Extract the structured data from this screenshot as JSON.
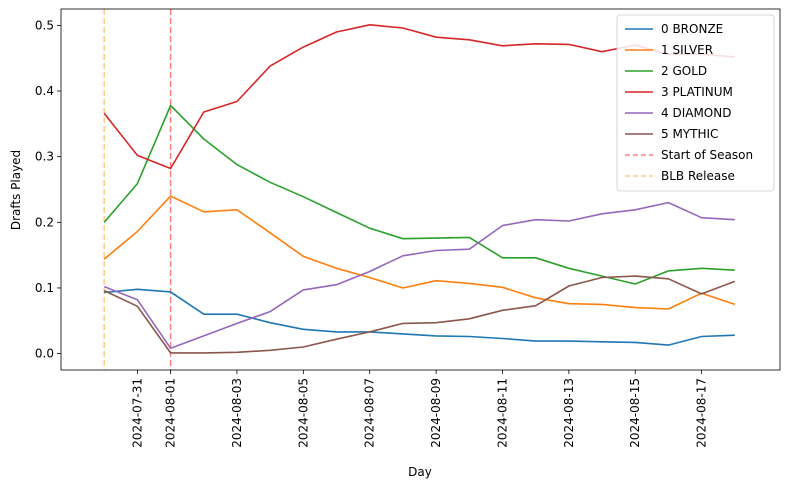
{
  "chart_data": {
    "type": "line",
    "xlabel": "Day",
    "ylabel": "Drafts Played",
    "xlim": [
      "2024-07-29",
      "2024-08-19"
    ],
    "ylim": [
      -0.025,
      0.525
    ],
    "x_tick_labels": [
      "2024-07-31",
      "2024-08-01",
      "2024-08-03",
      "2024-08-05",
      "2024-08-07",
      "2024-08-09",
      "2024-08-11",
      "2024-08-13",
      "2024-08-15",
      "2024-08-17"
    ],
    "y_tick_labels": [
      "0.0",
      "0.1",
      "0.2",
      "0.3",
      "0.4",
      "0.5"
    ],
    "y_ticks": [
      0.0,
      0.1,
      0.2,
      0.3,
      0.4,
      0.5
    ],
    "x": [
      "2024-07-30",
      "2024-07-31",
      "2024-08-01",
      "2024-08-02",
      "2024-08-03",
      "2024-08-04",
      "2024-08-05",
      "2024-08-06",
      "2024-08-07",
      "2024-08-08",
      "2024-08-09",
      "2024-08-10",
      "2024-08-11",
      "2024-08-12",
      "2024-08-13",
      "2024-08-14",
      "2024-08-15",
      "2024-08-16",
      "2024-08-17",
      "2024-08-18"
    ],
    "series": [
      {
        "name": "0 BRONZE",
        "color": "#1f77b4",
        "values": [
          0.093,
          0.098,
          0.094,
          0.06,
          0.06,
          0.047,
          0.037,
          0.033,
          0.033,
          0.03,
          0.027,
          0.026,
          0.023,
          0.019,
          0.019,
          0.018,
          0.017,
          0.013,
          0.026,
          0.028
        ]
      },
      {
        "name": "1 SILVER",
        "color": "#ff7f0e",
        "values": [
          0.144,
          0.186,
          0.24,
          0.216,
          0.219,
          0.184,
          0.148,
          0.13,
          0.116,
          0.1,
          0.111,
          0.107,
          0.101,
          0.085,
          0.076,
          0.075,
          0.07,
          0.068,
          0.092,
          0.075
        ]
      },
      {
        "name": "2 GOLD",
        "color": "#2ca02c",
        "values": [
          0.2,
          0.259,
          0.378,
          0.327,
          0.288,
          0.261,
          0.239,
          0.215,
          0.191,
          0.175,
          0.176,
          0.177,
          0.146,
          0.146,
          0.13,
          0.118,
          0.106,
          0.126,
          0.13,
          0.127
        ]
      },
      {
        "name": "3 PLATINUM",
        "color": "#d62728",
        "values": [
          0.366,
          0.302,
          0.282,
          0.368,
          0.384,
          0.438,
          0.467,
          0.49,
          0.501,
          0.496,
          0.482,
          0.478,
          0.469,
          0.472,
          0.471,
          0.46,
          0.47,
          0.456,
          0.456,
          0.452
        ]
      },
      {
        "name": "4 DIAMOND",
        "color": "#9467bd",
        "values": [
          0.102,
          0.082,
          0.008,
          0.027,
          0.046,
          0.064,
          0.097,
          0.105,
          0.125,
          0.149,
          0.157,
          0.159,
          0.195,
          0.204,
          0.202,
          0.213,
          0.219,
          0.23,
          0.207,
          0.204
        ]
      },
      {
        "name": "5 MYTHIC",
        "color": "#8c564b",
        "values": [
          0.096,
          0.072,
          0.001,
          0.001,
          0.002,
          0.005,
          0.01,
          0.022,
          0.033,
          0.046,
          0.047,
          0.053,
          0.066,
          0.073,
          0.103,
          0.116,
          0.118,
          0.114,
          0.091,
          0.11
        ]
      }
    ],
    "vlines": [
      {
        "name": "Start of Season",
        "x": "2024-08-01",
        "color": "#ff7f7f",
        "style": "dashed"
      },
      {
        "name": "BLB Release",
        "x": "2024-07-30",
        "color": "#ffcc80",
        "style": "dashed"
      }
    ],
    "legend_position": "top-right",
    "grid": false
  }
}
